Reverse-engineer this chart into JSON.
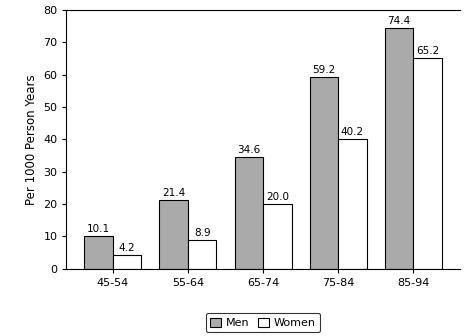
{
  "categories": [
    "45-54",
    "55-64",
    "65-74",
    "75-84",
    "85-94"
  ],
  "men_values": [
    10.1,
    21.4,
    34.6,
    59.2,
    74.4
  ],
  "women_values": [
    4.2,
    8.9,
    20.0,
    40.2,
    65.2
  ],
  "men_color": "#AAAAAA",
  "women_color": "#FFFFFF",
  "bar_edge_color": "#000000",
  "ylabel": "Per 1000 Person Years",
  "ylim": [
    0,
    80
  ],
  "yticks": [
    0,
    10,
    20,
    30,
    40,
    50,
    60,
    70,
    80
  ],
  "legend_labels": [
    "Men",
    "Women"
  ],
  "bar_width": 0.38,
  "label_fontsize": 7.5,
  "axis_fontsize": 8.5,
  "tick_fontsize": 8,
  "legend_fontsize": 8
}
